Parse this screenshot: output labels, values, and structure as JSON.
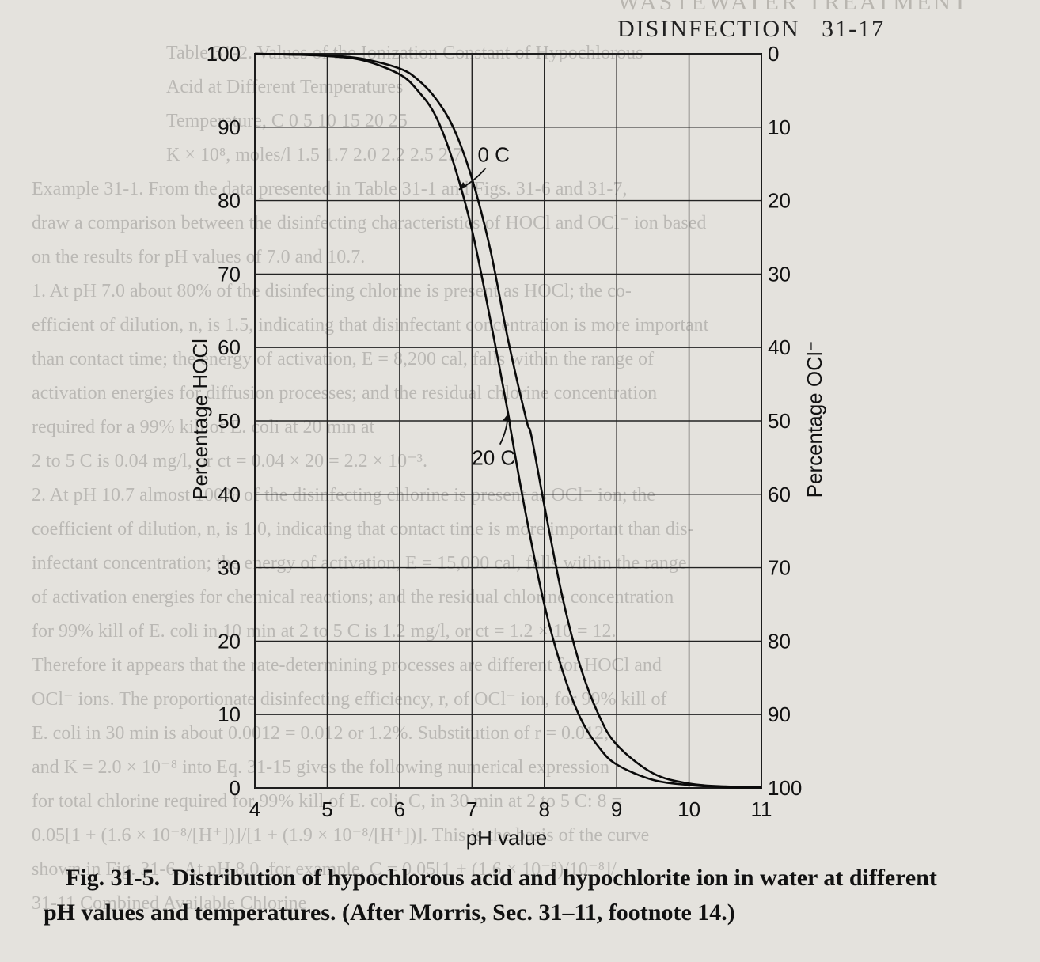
{
  "page_header": {
    "section_title": "DISINFECTION",
    "page_number": "31-17",
    "faint_prefix": "WASTEWATER TREATMENT"
  },
  "bleed_through_lines": [
    "Table 31-2. Values of the Ionization Constant of Hypochlorous",
    "Acid at Different Temperatures",
    "Temperature, C      0     5     10     15     20     25",
    "K × 10⁸, moles/l   1.5   1.7   2.0   2.2   2.5   2.7",
    "Example 31-1. From the data presented in Table 31-1 and Figs. 31-6 and 31-7,",
    "draw a comparison between the disinfecting characteristics of HOCl and OCl⁻ ion based",
    "on the results for pH values of 7.0 and 10.7.",
    "1. At pH 7.0 about 80% of the disinfecting chlorine is present as HOCl; the co-",
    "efficient of dilution, n, is 1.5, indicating that disinfectant concentration is more important",
    "than contact time; the energy of activation, E = 8,200 cal, falls within the range of",
    "activation energies for diffusion processes; and the residual chlorine concentration",
    "required for a 99% kill of E. coli at 20 min at",
    "2 to 5 C is 0.04 mg/l, or ct = 0.04 × 20 = 2.2 × 10⁻³.",
    "2. At pH 10.7 almost 100% of the disinfecting chlorine is present as OCl⁻ ion; the",
    "coefficient of dilution, n, is 1.0, indicating that contact time is more important than dis-",
    "infectant concentration; the energy of activation, E = 15,000 cal, falls within the range",
    "of activation energies for chemical reactions; and the residual chlorine concentration",
    "for 99% kill of E. coli in 10 min at 2 to 5 C is 1.2 mg/l, or ct = 1.2 × 10 = 12.",
    "Therefore it appears that the rate-determining processes are different for HOCl and",
    "OCl⁻ ions. The proportionate disinfecting efficiency, r, of OCl⁻ ion, for 99% kill of",
    "E. coli in 30 min is about 0.0012 = 0.012 or 1.2%. Substitution of r = 0.012,",
    "and K = 2.0 × 10⁻⁸ into Eq. 31-15 gives the following numerical expression",
    "for total chlorine required for 99% kill of E. coli, C, in 30 min at 2 to 5 C: 8 =",
    "0.05[1 + (1.6 × 10⁻⁸/[H⁺])]/[1 + (1.9 × 10⁻⁸/[H⁺])]. This is the basis of the curve",
    "shown in Fig. 31-6. At pH 8.0, for example, C = 0.05[1 + (1.6 × 10⁻⁸)/10⁻⁸]/",
    "31-11  Combined Available Chlorine"
  ],
  "chart_data": {
    "type": "line",
    "title": "",
    "xlabel": "pH value",
    "ylabel_left": "Percentage HOCl",
    "ylabel_right": "Percentage OCl⁻",
    "xlim": [
      4,
      11
    ],
    "ylim": [
      0,
      100
    ],
    "grid": true,
    "x_ticks": [
      "4",
      "5",
      "6",
      "7",
      "8",
      "9",
      "10",
      "11"
    ],
    "y_ticks_left": [
      "0",
      "10",
      "20",
      "30",
      "40",
      "50",
      "60",
      "70",
      "80",
      "90",
      "100"
    ],
    "y_ticks_right": [
      "100",
      "90",
      "80",
      "70",
      "60",
      "50",
      "40",
      "30",
      "20",
      "10",
      "0"
    ],
    "series": [
      {
        "name": "0 C",
        "x": [
          4.0,
          4.5,
          5.0,
          5.5,
          6.0,
          6.25,
          6.5,
          6.75,
          7.0,
          7.25,
          7.5,
          7.75,
          7.82,
          8.0,
          8.25,
          8.5,
          8.75,
          9.0,
          9.5,
          10.0,
          10.5,
          11.0
        ],
        "y": [
          100,
          99.9,
          99.8,
          99.3,
          98.0,
          96.5,
          93.9,
          89.8,
          83.0,
          73.5,
          61.0,
          50.2,
          48.0,
          38.5,
          26.0,
          16.5,
          10.0,
          5.9,
          2.0,
          0.6,
          0.2,
          0.1
        ]
      },
      {
        "name": "20 C",
        "x": [
          4.0,
          4.5,
          5.0,
          5.5,
          6.0,
          6.25,
          6.5,
          6.75,
          7.0,
          7.25,
          7.5,
          7.54,
          7.75,
          8.0,
          8.25,
          8.5,
          8.75,
          9.0,
          9.5,
          10.0,
          10.5,
          11.0
        ],
        "y": [
          100,
          99.9,
          99.7,
          99.1,
          97.2,
          95.0,
          91.5,
          85.0,
          76.0,
          64.0,
          51.0,
          48.5,
          37.0,
          25.0,
          16.0,
          9.5,
          5.6,
          3.2,
          1.1,
          0.4,
          0.1,
          0.05
        ]
      }
    ],
    "annotations": [
      {
        "text": "0 C",
        "x": 7.3,
        "y": 85.3,
        "points_to_x": 6.82,
        "points_to_y": 81.5
      },
      {
        "text": "20 C",
        "x": 7.3,
        "y": 44.0,
        "points_to_x": 7.5,
        "points_to_y": 51.0
      }
    ]
  },
  "caption": {
    "figure_label": "Fig. 31-5.",
    "text_line1": "Distribution of hypochlorous acid and hypochlorite ion in water at different",
    "text_line2": "pH values and temperatures. (After Morris, Sec. 31–11, footnote 14.)"
  }
}
